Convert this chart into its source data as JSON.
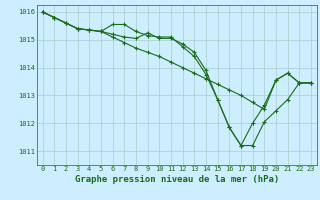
{
  "title": "Graphe pression niveau de la mer (hPa)",
  "background_color": "#cceeff",
  "grid_color": "#aacccc",
  "line_color": "#1a6b1a",
  "x_values": [
    0,
    1,
    2,
    3,
    4,
    5,
    6,
    7,
    8,
    9,
    10,
    11,
    12,
    13,
    14,
    15,
    16,
    17,
    18,
    19,
    20,
    21,
    22,
    23
  ],
  "series": [
    [
      1016.0,
      1015.8,
      1015.6,
      1015.4,
      1015.35,
      1015.3,
      1015.55,
      1015.55,
      1015.3,
      1015.15,
      1015.1,
      1015.1,
      1014.75,
      1014.4,
      1013.75,
      1012.85,
      1011.85,
      1011.2,
      1012.0,
      1012.65,
      1013.55,
      1013.8,
      1013.45,
      1013.45
    ],
    [
      1016.0,
      1015.8,
      1015.6,
      1015.4,
      1015.35,
      1015.3,
      1015.2,
      1015.1,
      1015.05,
      1015.25,
      1015.05,
      1015.05,
      1014.85,
      1014.55,
      1013.9,
      1012.85,
      1011.85,
      1011.2,
      1011.2,
      1012.05,
      1012.45,
      1012.85,
      1013.45,
      1013.45
    ],
    [
      1016.0,
      1015.8,
      1015.6,
      1015.4,
      1015.35,
      1015.3,
      1015.1,
      1014.9,
      1014.7,
      1014.55,
      1014.4,
      1014.2,
      1014.0,
      1013.8,
      1013.6,
      1013.4,
      1013.2,
      1013.0,
      1012.75,
      1012.5,
      1013.55,
      1013.8,
      1013.45,
      1013.45
    ]
  ],
  "ylim": [
    1010.5,
    1016.25
  ],
  "yticks": [
    1011,
    1012,
    1013,
    1014,
    1015,
    1016
  ],
  "xticks": [
    0,
    1,
    2,
    3,
    4,
    5,
    6,
    7,
    8,
    9,
    10,
    11,
    12,
    13,
    14,
    15,
    16,
    17,
    18,
    19,
    20,
    21,
    22,
    23
  ],
  "title_fontsize": 6.5,
  "tick_fontsize": 5.0,
  "marker_size": 2.5,
  "line_width": 0.8
}
